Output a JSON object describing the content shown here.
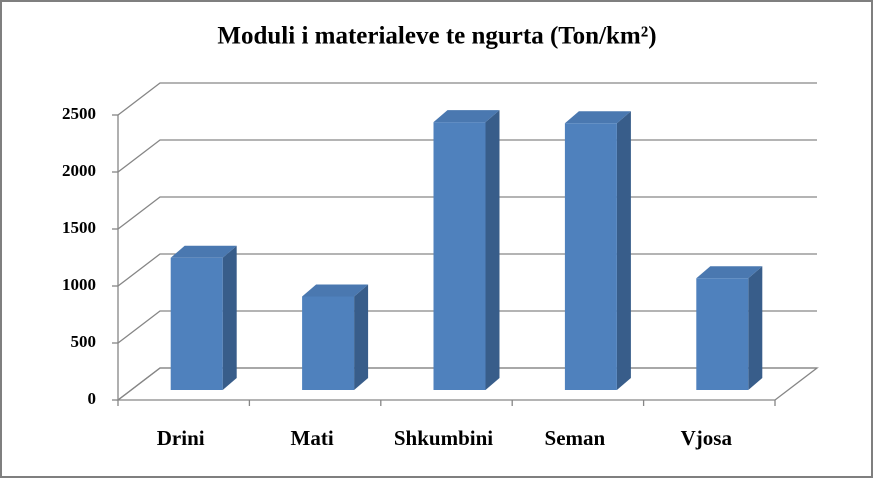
{
  "chart_data": {
    "type": "bar3d",
    "title": "Moduli i materialeve te ngurta (Ton/km²)",
    "categories": [
      "Drini",
      "Mati",
      "Shkumbini",
      "Seman",
      "Vjosa"
    ],
    "values": [
      1160,
      820,
      2350,
      2340,
      980
    ],
    "color": "#4f81bd",
    "ylim": [
      0,
      2500
    ],
    "yticks": [
      0,
      500,
      1000,
      1500,
      2000,
      2500
    ],
    "grid": true
  }
}
